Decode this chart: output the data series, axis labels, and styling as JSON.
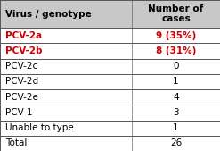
{
  "col1_header": "Virus / genotype",
  "col2_header": "Number of\ncases",
  "rows": [
    {
      "label": "PCV-2a",
      "value": "9 (35%)",
      "highlight": true
    },
    {
      "label": "PCV-2b",
      "value": "8 (31%)",
      "highlight": true
    },
    {
      "label": "PCV-2c",
      "value": "0",
      "highlight": false
    },
    {
      "label": "PCV-2d",
      "value": "1",
      "highlight": false
    },
    {
      "label": "PCV-2e",
      "value": "4",
      "highlight": false
    },
    {
      "label": "PCV-1",
      "value": "3",
      "highlight": false
    },
    {
      "label": "Unable to type",
      "value": "1",
      "highlight": false
    },
    {
      "label": "Total",
      "value": "26",
      "highlight": false
    }
  ],
  "highlight_color": "#cc0000",
  "normal_color": "#000000",
  "header_color": "#000000",
  "header_bg": "#c8c8c8",
  "border_color": "#555555",
  "font_size": 7.5,
  "header_font_size": 7.5,
  "figsize": [
    2.47,
    1.69
  ],
  "dpi": 100
}
